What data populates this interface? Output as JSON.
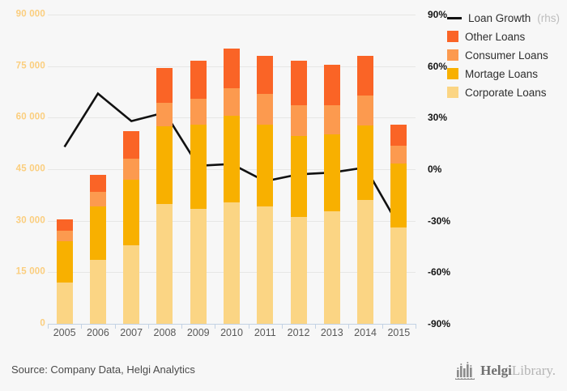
{
  "chart_data": {
    "type": "bar",
    "subtype": "stacked-bars-with-line-overlay",
    "categories": [
      "2005",
      "2006",
      "2007",
      "2008",
      "2009",
      "2010",
      "2011",
      "2012",
      "2013",
      "2014",
      "2015"
    ],
    "series": [
      {
        "name": "Corporate Loans",
        "color": "#fbd584",
        "values": [
          12000,
          18700,
          22900,
          34900,
          33400,
          35300,
          34100,
          31200,
          32800,
          36100,
          28000
        ]
      },
      {
        "name": "Mortage Loans",
        "color": "#f8b000",
        "values": [
          12000,
          15500,
          19100,
          22500,
          24500,
          25200,
          23900,
          23500,
          22300,
          21600,
          18700
        ]
      },
      {
        "name": "Consumer Loans",
        "color": "#fc9a4f",
        "values": [
          3000,
          4300,
          6100,
          7000,
          7600,
          8000,
          8900,
          8900,
          8500,
          8800,
          5100
        ]
      },
      {
        "name": "Other Loans",
        "color": "#fa6426",
        "values": [
          3500,
          4900,
          7900,
          10000,
          11100,
          11600,
          11000,
          13000,
          11900,
          11500,
          6100
        ]
      }
    ],
    "line_series": {
      "name": "Loan Growth",
      "axis": "rhs",
      "color": "#111111",
      "unit": "%",
      "values": [
        13,
        44,
        28,
        33,
        2,
        3,
        -7,
        -3,
        -2,
        1,
        -33
      ]
    },
    "left_axis": {
      "min": 0,
      "max": 90000,
      "step": 15000,
      "tick_labels": [
        "0",
        "15 000",
        "30 000",
        "45 000",
        "60 000",
        "75 000",
        "90 000"
      ],
      "label_color": "#fbce7e"
    },
    "right_axis": {
      "min": -90,
      "max": 90,
      "step": 30,
      "tick_labels": [
        "-90%",
        "-60%",
        "-30%",
        "0%",
        "30%",
        "60%",
        "90%"
      ],
      "label_color": "#141414"
    },
    "grid": true,
    "legend_position": "top-right",
    "title": ""
  },
  "legend": {
    "items": [
      {
        "label": "Loan Growth",
        "suffix": " (rhs)",
        "type": "line",
        "color": "#111111"
      },
      {
        "label": "Other Loans",
        "suffix": "",
        "type": "square",
        "color": "#fa6426"
      },
      {
        "label": "Consumer Loans",
        "suffix": "",
        "type": "square",
        "color": "#fc9a4f"
      },
      {
        "label": "Mortage Loans",
        "suffix": "",
        "type": "square",
        "color": "#f8b000"
      },
      {
        "label": "Corporate Loans",
        "suffix": "",
        "type": "square",
        "color": "#fbd584"
      }
    ]
  },
  "footer": {
    "source_text": "Source: Company Data, Helgi Analytics",
    "logo_part1": "Helgi",
    "logo_part2": "Library."
  },
  "style": {
    "background": "#f7f7f7",
    "gridline_color": "#e7e7e5",
    "axis_color": "#c3d2e4"
  }
}
